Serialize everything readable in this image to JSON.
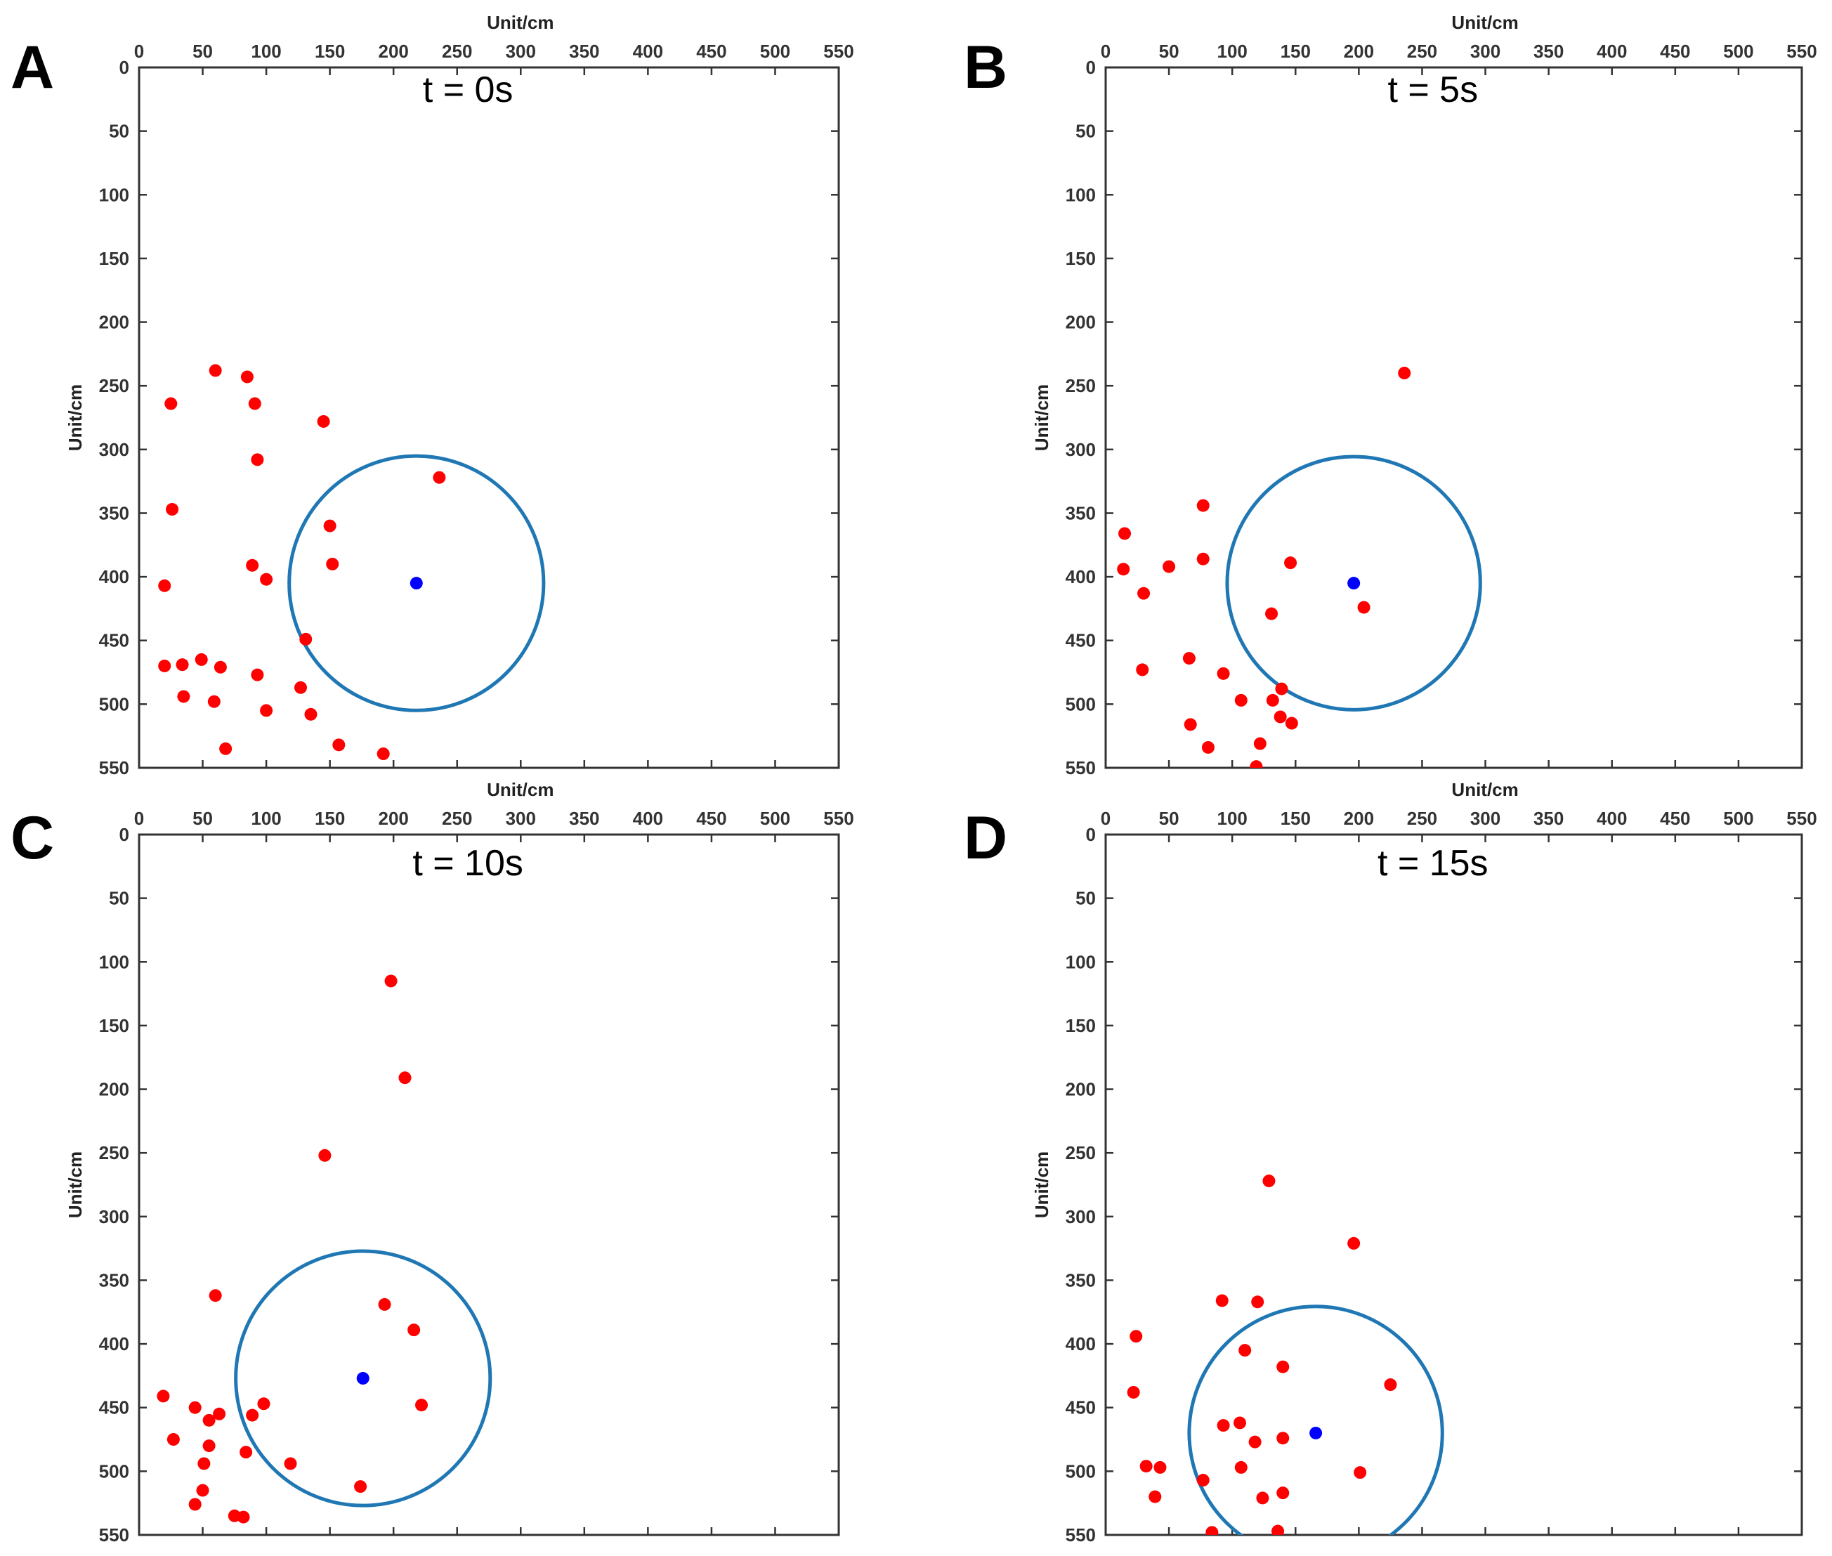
{
  "chart_data": [
    {
      "type": "scatter",
      "panel": "A",
      "title": "t = 0s",
      "xlabel": "Unit/cm",
      "ylabel": "Unit/cm",
      "xlim": [
        0,
        550
      ],
      "ylim": [
        0,
        550
      ],
      "xticks": [
        "0",
        "50",
        "100",
        "150",
        "200",
        "250",
        "300",
        "350",
        "400",
        "450",
        "500",
        "550"
      ],
      "yticks": [
        "0",
        "50",
        "100",
        "150",
        "200",
        "250",
        "300",
        "350",
        "400",
        "450",
        "500",
        "550"
      ],
      "circle": {
        "cx": 218,
        "cy": 405,
        "r": 100,
        "color": "#1f77b4"
      },
      "center_point": {
        "x": 218,
        "y": 405,
        "color": "#0000ff"
      },
      "points_color": "#ff0000",
      "points": [
        [
          60,
          238
        ],
        [
          85,
          243
        ],
        [
          25,
          264
        ],
        [
          91,
          264
        ],
        [
          145,
          278
        ],
        [
          93,
          308
        ],
        [
          236,
          322
        ],
        [
          26,
          347
        ],
        [
          150,
          360
        ],
        [
          89,
          391
        ],
        [
          152,
          390
        ],
        [
          100,
          402
        ],
        [
          20,
          407
        ],
        [
          131,
          449
        ],
        [
          49,
          465
        ],
        [
          34,
          469
        ],
        [
          20,
          470
        ],
        [
          64,
          471
        ],
        [
          93,
          477
        ],
        [
          127,
          487
        ],
        [
          35,
          494
        ],
        [
          59,
          498
        ],
        [
          100,
          505
        ],
        [
          135,
          508
        ],
        [
          68,
          535
        ],
        [
          157,
          532
        ],
        [
          192,
          539
        ]
      ]
    },
    {
      "type": "scatter",
      "panel": "B",
      "title": "t = 5s",
      "xlabel": "Unit/cm",
      "ylabel": "Unit/cm",
      "xlim": [
        0,
        550
      ],
      "ylim": [
        0,
        550
      ],
      "xticks": [
        "0",
        "50",
        "100",
        "150",
        "200",
        "250",
        "300",
        "350",
        "400",
        "450",
        "500",
        "550"
      ],
      "yticks": [
        "0",
        "50",
        "100",
        "150",
        "200",
        "250",
        "300",
        "350",
        "400",
        "450",
        "500",
        "550"
      ],
      "circle": {
        "cx": 196,
        "cy": 405,
        "r": 100,
        "color": "#1f77b4"
      },
      "center_point": {
        "x": 196,
        "y": 405,
        "color": "#0000ff"
      },
      "points_color": "#ff0000",
      "points": [
        [
          236,
          240
        ],
        [
          77,
          344
        ],
        [
          15,
          366
        ],
        [
          77,
          386
        ],
        [
          14,
          394
        ],
        [
          50,
          392
        ],
        [
          146,
          389
        ],
        [
          30,
          413
        ],
        [
          131,
          429
        ],
        [
          204,
          424
        ],
        [
          66,
          464
        ],
        [
          93,
          476
        ],
        [
          29,
          473
        ],
        [
          139,
          488
        ],
        [
          107,
          497
        ],
        [
          132,
          497
        ],
        [
          138,
          510
        ],
        [
          67,
          516
        ],
        [
          147,
          515
        ],
        [
          81,
          534
        ],
        [
          122,
          531
        ],
        [
          119,
          549
        ]
      ]
    },
    {
      "type": "scatter",
      "panel": "C",
      "title": "t = 10s",
      "xlabel": "Unit/cm",
      "ylabel": "Unit/cm",
      "xlim": [
        0,
        550
      ],
      "ylim": [
        0,
        550
      ],
      "xticks": [
        "0",
        "50",
        "100",
        "150",
        "200",
        "250",
        "300",
        "350",
        "400",
        "450",
        "500",
        "550"
      ],
      "yticks": [
        "0",
        "50",
        "100",
        "150",
        "200",
        "250",
        "300",
        "350",
        "400",
        "450",
        "500",
        "550"
      ],
      "circle": {
        "cx": 176,
        "cy": 427,
        "r": 100,
        "color": "#1f77b4"
      },
      "center_point": {
        "x": 176,
        "y": 427,
        "color": "#0000ff"
      },
      "points_color": "#ff0000",
      "points": [
        [
          198,
          115
        ],
        [
          209,
          191
        ],
        [
          146,
          252
        ],
        [
          60,
          362
        ],
        [
          193,
          369
        ],
        [
          216,
          389
        ],
        [
          19,
          441
        ],
        [
          44,
          450
        ],
        [
          222,
          448
        ],
        [
          98,
          447
        ],
        [
          63,
          455
        ],
        [
          89,
          456
        ],
        [
          55,
          460
        ],
        [
          27,
          475
        ],
        [
          55,
          480
        ],
        [
          84,
          485
        ],
        [
          51,
          494
        ],
        [
          119,
          494
        ],
        [
          174,
          512
        ],
        [
          50,
          515
        ],
        [
          44,
          526
        ],
        [
          75,
          535
        ],
        [
          82,
          536
        ]
      ]
    },
    {
      "type": "scatter",
      "panel": "D",
      "title": "t = 15s",
      "xlabel": "Unit/cm",
      "ylabel": "Unit/cm",
      "xlim": [
        0,
        550
      ],
      "ylim": [
        0,
        550
      ],
      "xticks": [
        "0",
        "50",
        "100",
        "150",
        "200",
        "250",
        "300",
        "350",
        "400",
        "450",
        "500",
        "550"
      ],
      "yticks": [
        "0",
        "50",
        "100",
        "150",
        "200",
        "250",
        "300",
        "350",
        "400",
        "450",
        "500",
        "550"
      ],
      "circle": {
        "cx": 166,
        "cy": 470,
        "r": 100,
        "color": "#1f77b4"
      },
      "center_point": {
        "x": 166,
        "y": 470,
        "color": "#0000ff"
      },
      "points_color": "#ff0000",
      "points": [
        [
          129,
          272
        ],
        [
          196,
          321
        ],
        [
          92,
          366
        ],
        [
          120,
          367
        ],
        [
          24,
          394
        ],
        [
          110,
          405
        ],
        [
          140,
          418
        ],
        [
          22,
          438
        ],
        [
          225,
          432
        ],
        [
          93,
          464
        ],
        [
          106,
          462
        ],
        [
          118,
          477
        ],
        [
          140,
          474
        ],
        [
          32,
          496
        ],
        [
          43,
          497
        ],
        [
          107,
          497
        ],
        [
          201,
          501
        ],
        [
          77,
          507
        ],
        [
          39,
          520
        ],
        [
          124,
          521
        ],
        [
          140,
          517
        ],
        [
          84,
          548
        ],
        [
          136,
          547
        ]
      ]
    }
  ]
}
